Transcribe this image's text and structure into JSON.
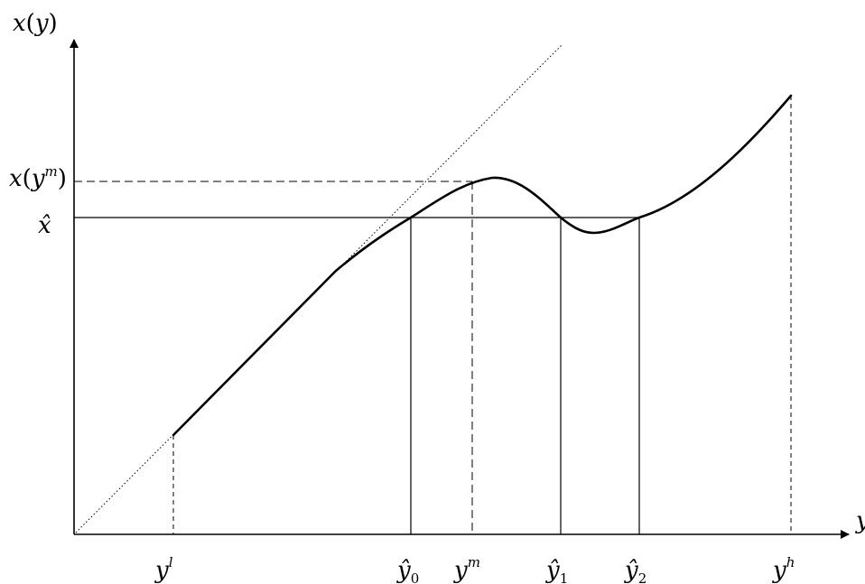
{
  "chart_data": {
    "type": "line",
    "title": "",
    "axes": {
      "y_axis_label": {
        "base": "x",
        "open": "(",
        "arg": "y",
        "close": ")"
      },
      "x_axis_label": "y"
    },
    "curve_shape": "x(y) rises along a straight segment from y^l, bends into a local maximum at y^m, dips to a local minimum between ŷ1 and ŷ2, then rises to y^h",
    "reference_lines": [
      {
        "name": "diagonal",
        "style": "dotted",
        "description": "45-degree line through origin"
      },
      {
        "name": "x-hat",
        "style": "solid",
        "description": "horizontal line at x̂ crossing the curve at ŷ0, ŷ1, ŷ2"
      },
      {
        "name": "x-of-y-m",
        "style": "dashed",
        "description": "horizontal line at x(y^m)"
      }
    ],
    "y_tick_labels": {
      "x_of_ym": {
        "base": "x",
        "open": "(",
        "arg": "y",
        "sup": "m",
        "close": ")"
      },
      "x_hat": {
        "base": "x̂"
      }
    },
    "x_tick_labels": {
      "y_l": {
        "base": "y",
        "sup": "l"
      },
      "y_hat_0": {
        "base": "ŷ",
        "sub": "0"
      },
      "y_m": {
        "base": "y",
        "sup": "m"
      },
      "y_hat_1": {
        "base": "ŷ",
        "sub": "1"
      },
      "y_hat_2": {
        "base": "ŷ",
        "sub": "2"
      },
      "y_h": {
        "base": "y",
        "sup": "h"
      }
    },
    "grid": false,
    "legend": "none"
  }
}
